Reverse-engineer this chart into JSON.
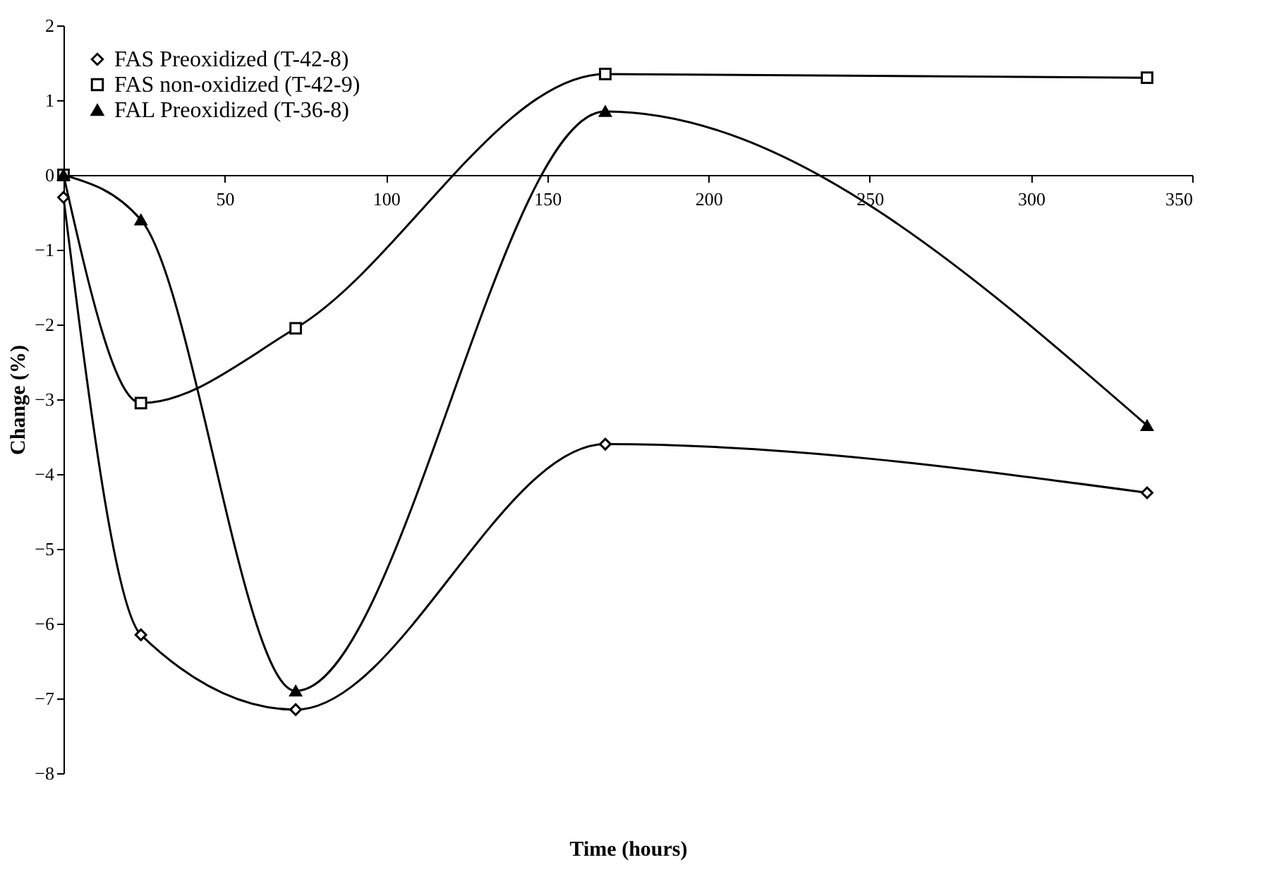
{
  "chart_data": {
    "type": "line",
    "xlabel": "Time (hours)",
    "ylabel": "Change (%)",
    "x": [
      0,
      24,
      72,
      168,
      336
    ],
    "series": [
      {
        "name": "FAS Preoxidized (T-42-8)",
        "color": "#000000",
        "marker": "diamond",
        "values": [
          -0.3,
          -6.15,
          -7.15,
          -3.6,
          -4.25
        ]
      },
      {
        "name": "FAS non-oxidized (T-42-9)",
        "color": "#000000",
        "marker": "square",
        "values": [
          0,
          -3.05,
          -2.05,
          1.35,
          1.3
        ]
      },
      {
        "name": "FAL Preoxidized (T-36-8)",
        "color": "#000000",
        "marker": "triangle",
        "values": [
          0,
          -0.6,
          -6.9,
          0.85,
          -3.35
        ]
      }
    ],
    "xlim": [
      0,
      350
    ],
    "xticks": [
      50,
      100,
      150,
      200,
      250,
      300,
      350
    ],
    "ylim": [
      -8,
      2
    ],
    "yticks": [
      -8,
      -7,
      -6,
      -5,
      -4,
      -3,
      -2,
      -1,
      0,
      1,
      2
    ],
    "grid": false,
    "legend": "top left",
    "line_style": "solid"
  }
}
